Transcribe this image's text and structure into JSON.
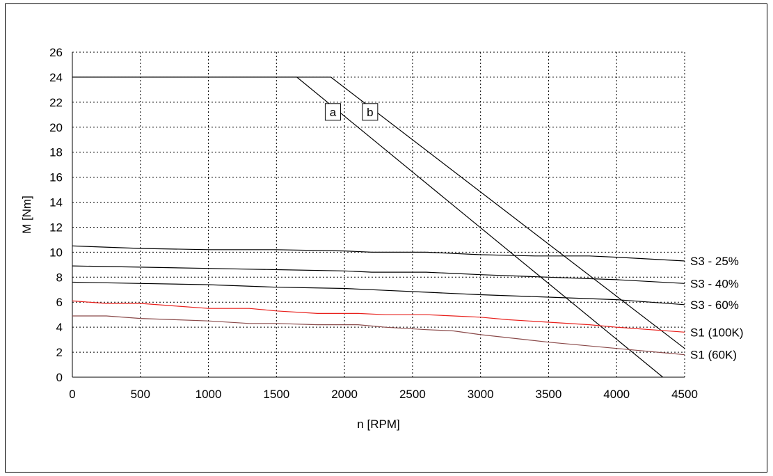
{
  "chart_data": {
    "type": "line",
    "xlabel": "n [RPM]",
    "ylabel": "M [Nm]",
    "xlim": [
      0,
      4500
    ],
    "ylim": [
      0,
      26
    ],
    "xticks": [
      0,
      500,
      1000,
      1500,
      2000,
      2500,
      3000,
      3500,
      4000,
      4500
    ],
    "yticks": [
      0,
      2,
      4,
      6,
      8,
      10,
      12,
      14,
      16,
      18,
      20,
      22,
      24,
      26
    ],
    "grid": true,
    "legend": "none",
    "series": [
      {
        "name": "a",
        "color": "#000000",
        "label_pos": "inline-boxed",
        "points": [
          [
            0,
            24
          ],
          [
            1650,
            24
          ],
          [
            4340,
            0
          ]
        ]
      },
      {
        "name": "b",
        "color": "#000000",
        "label_pos": "inline-boxed",
        "points": [
          [
            0,
            24
          ],
          [
            1900,
            24
          ],
          [
            4500,
            2.3
          ]
        ]
      },
      {
        "name": "S3 - 25%",
        "color": "#000000",
        "label_pos": "right",
        "points": [
          [
            0,
            10.5
          ],
          [
            500,
            10.3
          ],
          [
            1000,
            10.2
          ],
          [
            1500,
            10.2
          ],
          [
            2000,
            10.1
          ],
          [
            2200,
            10.0
          ],
          [
            2600,
            10.0
          ],
          [
            3000,
            9.8
          ],
          [
            3400,
            9.7
          ],
          [
            3800,
            9.7
          ],
          [
            4000,
            9.6
          ],
          [
            4500,
            9.3
          ]
        ]
      },
      {
        "name": "S3 - 40%",
        "color": "#000000",
        "label_pos": "right",
        "points": [
          [
            0,
            8.9
          ],
          [
            500,
            8.8
          ],
          [
            1000,
            8.7
          ],
          [
            1500,
            8.6
          ],
          [
            2000,
            8.5
          ],
          [
            2200,
            8.4
          ],
          [
            2600,
            8.4
          ],
          [
            3000,
            8.2
          ],
          [
            3500,
            8.0
          ],
          [
            4000,
            7.8
          ],
          [
            4500,
            7.5
          ]
        ]
      },
      {
        "name": "S3 - 60%",
        "color": "#000000",
        "label_pos": "right",
        "points": [
          [
            0,
            7.6
          ],
          [
            500,
            7.5
          ],
          [
            1000,
            7.4
          ],
          [
            1500,
            7.2
          ],
          [
            2000,
            7.1
          ],
          [
            2200,
            7.0
          ],
          [
            2600,
            6.8
          ],
          [
            3000,
            6.6
          ],
          [
            3500,
            6.4
          ],
          [
            4000,
            6.2
          ],
          [
            4500,
            5.8
          ]
        ]
      },
      {
        "name": "S1 (100K)",
        "color": "#e8201c",
        "label_pos": "right",
        "points": [
          [
            0,
            6.1
          ],
          [
            250,
            5.9
          ],
          [
            500,
            5.9
          ],
          [
            750,
            5.7
          ],
          [
            1000,
            5.5
          ],
          [
            1300,
            5.5
          ],
          [
            1500,
            5.3
          ],
          [
            1800,
            5.1
          ],
          [
            2100,
            5.1
          ],
          [
            2300,
            5.0
          ],
          [
            2600,
            5.0
          ],
          [
            2800,
            4.9
          ],
          [
            3000,
            4.8
          ],
          [
            3200,
            4.6
          ],
          [
            3500,
            4.4
          ],
          [
            3800,
            4.2
          ],
          [
            4000,
            4.0
          ],
          [
            4500,
            3.6
          ]
        ]
      },
      {
        "name": "S1 (60K)",
        "color": "#8a4a4a",
        "label_pos": "right",
        "points": [
          [
            0,
            4.9
          ],
          [
            250,
            4.9
          ],
          [
            500,
            4.7
          ],
          [
            750,
            4.6
          ],
          [
            1000,
            4.5
          ],
          [
            1300,
            4.3
          ],
          [
            1500,
            4.3
          ],
          [
            1800,
            4.2
          ],
          [
            2100,
            4.2
          ],
          [
            2300,
            4.0
          ],
          [
            2600,
            3.8
          ],
          [
            2800,
            3.7
          ],
          [
            3000,
            3.4
          ],
          [
            3500,
            2.8
          ],
          [
            4000,
            2.3
          ],
          [
            4500,
            1.8
          ]
        ]
      }
    ]
  }
}
